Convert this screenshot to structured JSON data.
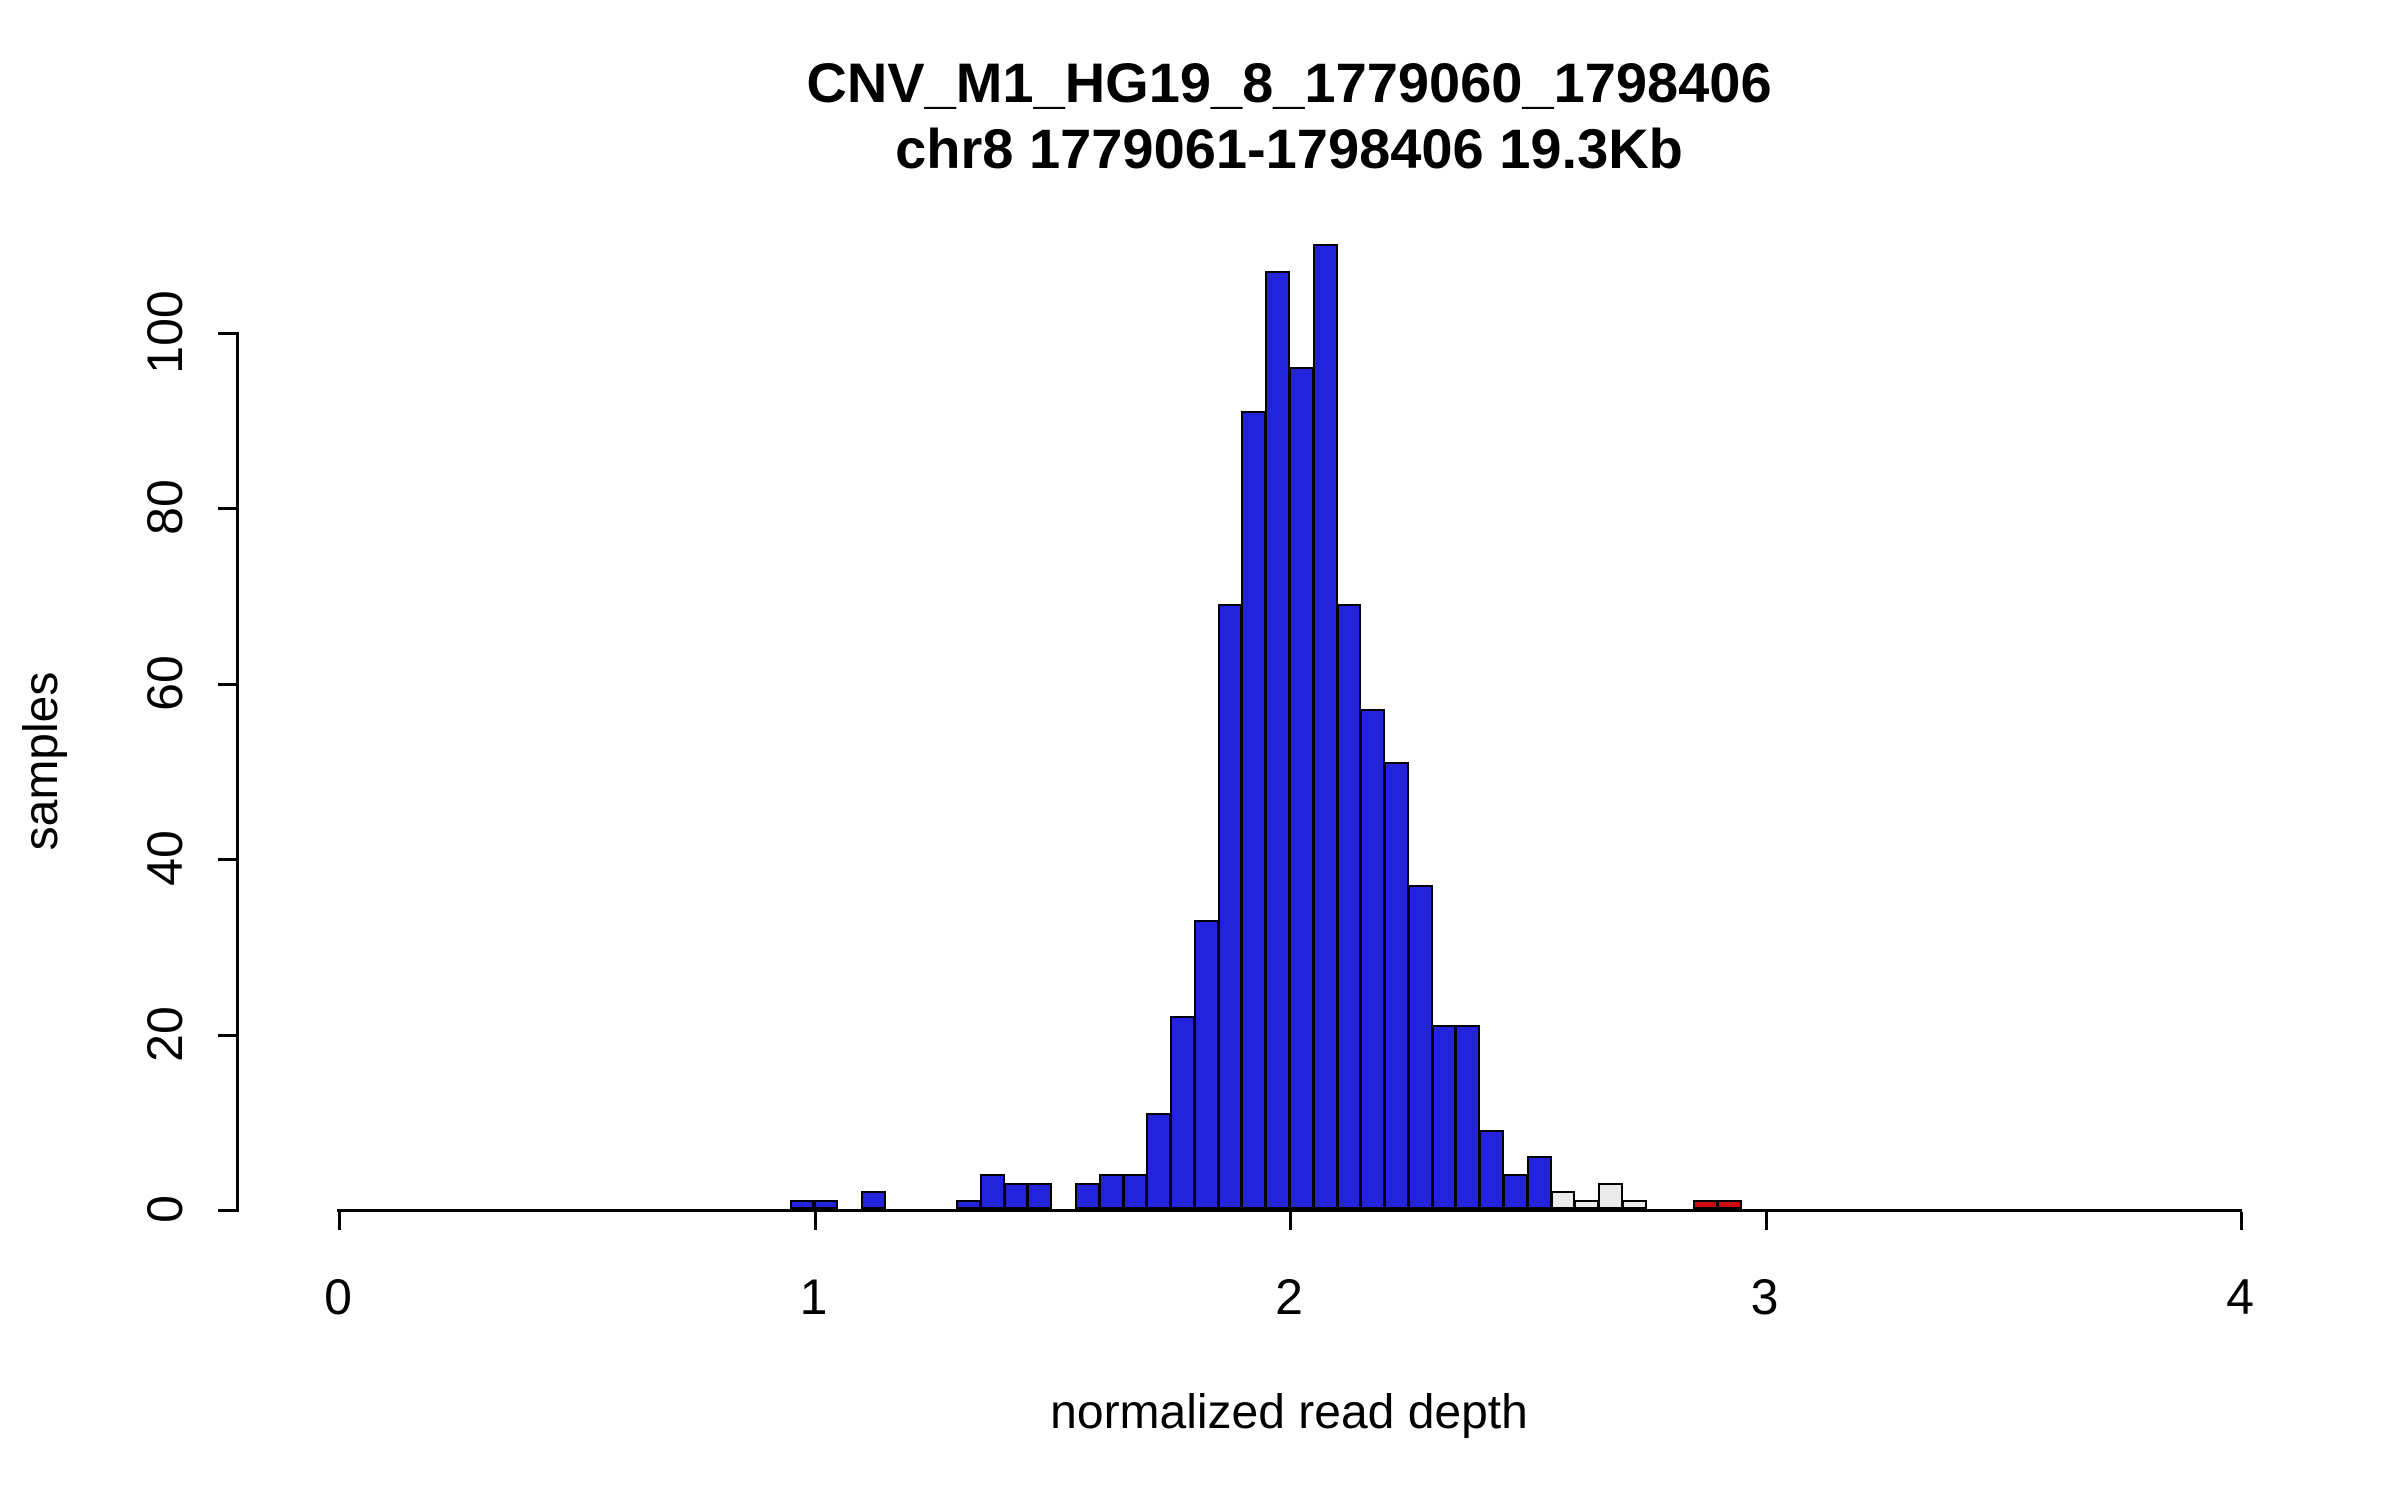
{
  "figure": {
    "title": "CNV_M1_HG19_8_1779060_1798406",
    "subtitle": "chr8 1779061-1798406 19.3Kb"
  },
  "chart_data": {
    "type": "bar",
    "subtype": "histogram",
    "title": "CNV_M1_HG19_8_1779060_1798406",
    "subtitle": "chr8 1779061-1798406 19.3Kb",
    "xlabel": "normalized read depth",
    "ylabel": "samples",
    "xlim": [
      0,
      4
    ],
    "ylim": [
      0,
      110
    ],
    "x_ticks": [
      0,
      1,
      2,
      3,
      4
    ],
    "y_ticks": [
      0,
      20,
      40,
      60,
      80,
      100
    ],
    "grid": false,
    "legend": "none",
    "bin_width": 0.05,
    "colors": {
      "blue": "#2323dc",
      "gray": "#ebebeb",
      "red": "#cf0a0a",
      "axis": "#000000"
    },
    "bars": [
      {
        "x": 0.95,
        "count": 1,
        "color": "blue"
      },
      {
        "x": 1.0,
        "count": 1,
        "color": "blue"
      },
      {
        "x": 1.1,
        "count": 2,
        "color": "blue"
      },
      {
        "x": 1.3,
        "count": 1,
        "color": "blue"
      },
      {
        "x": 1.35,
        "count": 4,
        "color": "blue"
      },
      {
        "x": 1.4,
        "count": 3,
        "color": "blue"
      },
      {
        "x": 1.45,
        "count": 3,
        "color": "blue"
      },
      {
        "x": 1.55,
        "count": 3,
        "color": "blue"
      },
      {
        "x": 1.6,
        "count": 4,
        "color": "blue"
      },
      {
        "x": 1.65,
        "count": 4,
        "color": "blue"
      },
      {
        "x": 1.7,
        "count": 11,
        "color": "blue"
      },
      {
        "x": 1.75,
        "count": 22,
        "color": "blue"
      },
      {
        "x": 1.8,
        "count": 33,
        "color": "blue"
      },
      {
        "x": 1.85,
        "count": 69,
        "color": "blue"
      },
      {
        "x": 1.9,
        "count": 91,
        "color": "blue"
      },
      {
        "x": 1.95,
        "count": 107,
        "color": "blue"
      },
      {
        "x": 2.0,
        "count": 96,
        "color": "blue"
      },
      {
        "x": 2.05,
        "count": 110,
        "color": "blue"
      },
      {
        "x": 2.1,
        "count": 69,
        "color": "blue"
      },
      {
        "x": 2.15,
        "count": 57,
        "color": "blue"
      },
      {
        "x": 2.2,
        "count": 51,
        "color": "blue"
      },
      {
        "x": 2.25,
        "count": 37,
        "color": "blue"
      },
      {
        "x": 2.3,
        "count": 21,
        "color": "blue"
      },
      {
        "x": 2.35,
        "count": 21,
        "color": "blue"
      },
      {
        "x": 2.4,
        "count": 9,
        "color": "blue"
      },
      {
        "x": 2.45,
        "count": 4,
        "color": "blue"
      },
      {
        "x": 2.5,
        "count": 6,
        "color": "blue"
      },
      {
        "x": 2.55,
        "count": 2,
        "color": "gray"
      },
      {
        "x": 2.6,
        "count": 1,
        "color": "gray"
      },
      {
        "x": 2.65,
        "count": 3,
        "color": "gray"
      },
      {
        "x": 2.7,
        "count": 1,
        "color": "gray"
      },
      {
        "x": 2.85,
        "count": 1,
        "color": "red"
      },
      {
        "x": 2.9,
        "count": 1,
        "color": "red"
      }
    ]
  }
}
